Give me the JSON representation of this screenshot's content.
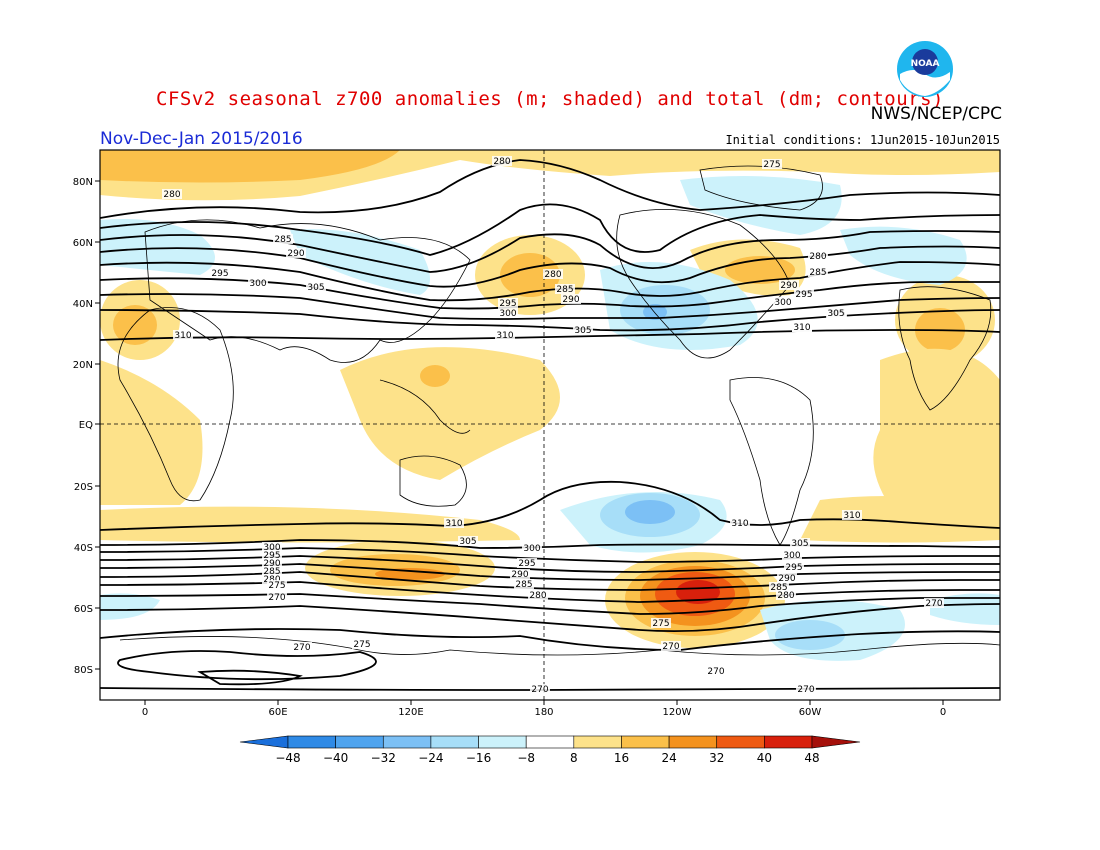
{
  "header": {
    "title": "CFSv2 seasonal z700 anomalies (m; shaded) and total (dm; contours)",
    "agency": "NWS/NCEP/CPC",
    "period": "Nov-Dec-Jan 2015/2016",
    "initial_conditions": "Initial conditions: 1Jun2015-10Jun2015",
    "logo_text": "NOAA"
  },
  "map": {
    "lat_labels": [
      "80N",
      "60N",
      "40N",
      "20N",
      "EQ",
      "20S",
      "40S",
      "60S",
      "80S"
    ],
    "lon_labels": [
      "0",
      "60E",
      "120E",
      "180",
      "120W",
      "60W",
      "0"
    ]
  },
  "colorbar": {
    "levels": [
      "-48",
      "-40",
      "-32",
      "-24",
      "-16",
      "-8",
      "8",
      "16",
      "24",
      "32",
      "40",
      "48"
    ],
    "colors": [
      "#1a6fdb",
      "#2f8ae6",
      "#4fa4ef",
      "#7cc0f5",
      "#a7def8",
      "#ccf2fb",
      "#ffffff",
      "#fde28a",
      "#fbc04a",
      "#f4921e",
      "#ef5a12",
      "#d8200c",
      "#a5100a"
    ]
  },
  "contour_labels": [
    "280",
    "275",
    "280",
    "285",
    "290",
    "295",
    "300",
    "305",
    "310",
    "310",
    "305",
    "280",
    "285",
    "295",
    "300",
    "290",
    "305",
    "310",
    "280",
    "285",
    "290",
    "295",
    "300",
    "305",
    "310",
    "310",
    "305",
    "300",
    "295",
    "290",
    "285",
    "280",
    "275",
    "270",
    "310",
    "300",
    "295",
    "290",
    "285",
    "280",
    "275",
    "270",
    "310",
    "305",
    "300",
    "295",
    "290",
    "285",
    "280",
    "270",
    "275",
    "270",
    "270",
    "270",
    "270"
  ]
}
